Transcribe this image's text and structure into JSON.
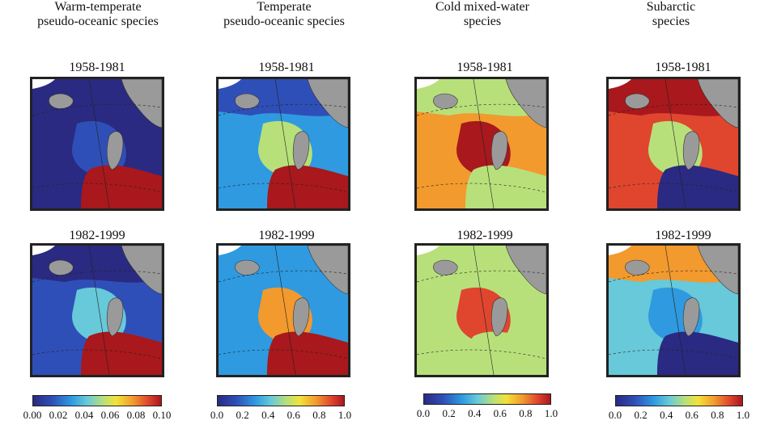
{
  "columns": [
    {
      "title_line1": "Warm-temperate",
      "title_line2": "pseudo-oceanic species",
      "period1": "1958-1981",
      "period2": "1982-1999",
      "scale": [
        "0.00",
        "0.02",
        "0.04",
        "0.06",
        "0.08",
        "0.10"
      ]
    },
    {
      "title_line1": "Temperate",
      "title_line2": "pseudo-oceanic species",
      "period1": "1958-1981",
      "period2": "1982-1999",
      "scale": [
        "0.0",
        "0.2",
        "0.4",
        "0.6",
        "0.8",
        "1.0"
      ]
    },
    {
      "title_line1": "Cold mixed-water",
      "title_line2": "species",
      "period1": "1958-1981",
      "period2": "1982-1999",
      "scale": [
        "0.0",
        "0.2",
        "0.4",
        "0.6",
        "0.8",
        "1.0"
      ]
    },
    {
      "title_line1": "Subarctic",
      "title_line2": "species",
      "period1": "1958-1981",
      "period2": "1982-1999",
      "scale": [
        "0.0",
        "0.2",
        "0.4",
        "0.6",
        "0.8",
        "1.0"
      ]
    }
  ],
  "chart_data": {
    "type": "heatmap",
    "layout": "4 columns x 2 periods of spatial abundance maps",
    "colormap": [
      "#2a2a82",
      "#2f4fb8",
      "#2f9ae0",
      "#67c9d9",
      "#b8e07a",
      "#f2e23a",
      "#f29a2e",
      "#e0452e",
      "#a8181c"
    ],
    "land_color": "#9a9a9a",
    "periods": [
      "1958-1981",
      "1982-1999"
    ],
    "panels": [
      {
        "col": 0,
        "row": 0,
        "levels": {
          "west": 0.05,
          "centre": 0.15,
          "south": 0.95,
          "north": 0.05
        }
      },
      {
        "col": 0,
        "row": 1,
        "levels": {
          "west": 0.1,
          "centre": 0.4,
          "south": 1.0,
          "north": 0.05
        }
      },
      {
        "col": 1,
        "row": 0,
        "levels": {
          "west": 0.2,
          "centre": 0.55,
          "south": 0.95,
          "north": 0.15
        }
      },
      {
        "col": 1,
        "row": 1,
        "levels": {
          "west": 0.3,
          "centre": 0.7,
          "south": 1.0,
          "north": 0.2
        }
      },
      {
        "col": 2,
        "row": 0,
        "levels": {
          "west": 0.7,
          "centre": 1.0,
          "south": 0.45,
          "north": 0.45
        }
      },
      {
        "col": 2,
        "row": 1,
        "levels": {
          "west": 0.5,
          "centre": 0.85,
          "south": 0.45,
          "north": 0.45
        }
      },
      {
        "col": 3,
        "row": 0,
        "levels": {
          "west": 0.85,
          "centre": 0.45,
          "south": 0.05,
          "north": 1.0
        }
      },
      {
        "col": 3,
        "row": 1,
        "levels": {
          "west": 0.35,
          "centre": 0.2,
          "south": 0.05,
          "north": 0.8
        }
      }
    ]
  }
}
